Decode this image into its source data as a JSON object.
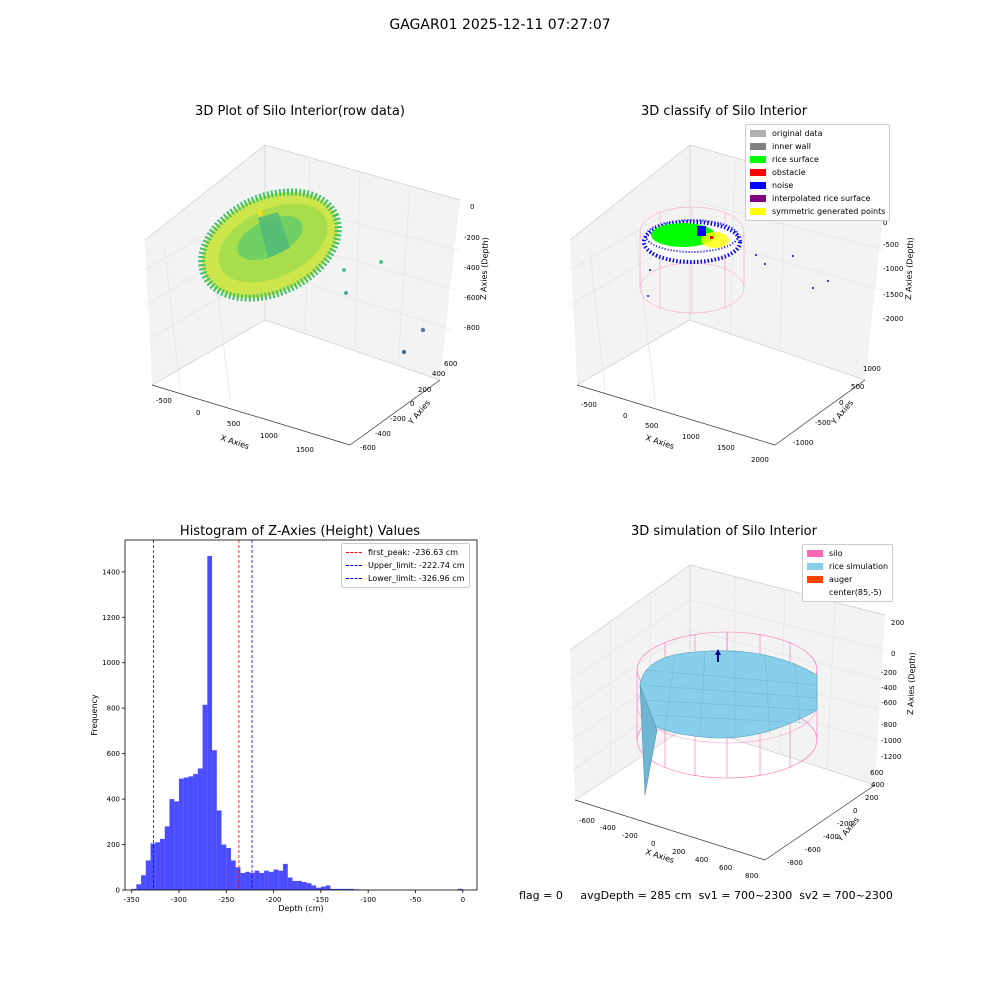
{
  "figure_title": "GAGAR01 2025-12-11 07:27:07",
  "panels": {
    "raw": {
      "title": "3D Plot of Silo Interior(row data)",
      "x_label": "X Axies",
      "y_label": "Y Axies",
      "z_label": "Z Axies (Depth)",
      "x_ticks": [
        "-500",
        "0",
        "500",
        "1000",
        "1500"
      ],
      "y_ticks": [
        "-600",
        "-400",
        "-200",
        "0",
        "200",
        "400",
        "600"
      ],
      "z_ticks": [
        "0",
        "-200",
        "-400",
        "-600",
        "-800"
      ]
    },
    "classify": {
      "title": "3D classify of Silo Interior",
      "x_label": "X Axies",
      "y_label": "Y Axies",
      "z_label": "Z Axies (Depth)",
      "x_ticks": [
        "-500",
        "0",
        "500",
        "1000",
        "1500",
        "2000"
      ],
      "y_ticks": [
        "-1000",
        "-500",
        "0",
        "500",
        "1000"
      ],
      "z_ticks": [
        "0",
        "-500",
        "-1000",
        "-1500",
        "-2000"
      ],
      "legend": [
        {
          "label": "original data",
          "color": "#b0b0b0"
        },
        {
          "label": "inner wall",
          "color": "#808080"
        },
        {
          "label": "rice surface",
          "color": "#00ff00"
        },
        {
          "label": "obstacle",
          "color": "#ff0000"
        },
        {
          "label": "noise",
          "color": "#0000ff"
        },
        {
          "label": "interpolated rice surface",
          "color": "#800080"
        },
        {
          "label": "symmetric generated points",
          "color": "#ffff00"
        }
      ]
    },
    "simulation": {
      "title": "3D simulation of Silo Interior",
      "x_label": "X Axies",
      "y_label": "Y Axies",
      "z_label": "Z Axies (Depth)",
      "x_ticks": [
        "-600",
        "-400",
        "-200",
        "0",
        "200",
        "400",
        "600",
        "800"
      ],
      "y_ticks": [
        "-800",
        "-600",
        "-400",
        "-200",
        "0",
        "200",
        "400",
        "600"
      ],
      "z_ticks": [
        "200",
        "0",
        "-200",
        "-400",
        "-600",
        "-800",
        "-1000",
        "-1200"
      ],
      "legend": [
        {
          "label": "silo",
          "color": "#ff69b4"
        },
        {
          "label": "rice simulation",
          "color": "#87ceeb"
        },
        {
          "label": "auger",
          "color": "#ff4500"
        },
        {
          "label": "center(85,-5)",
          "color": ""
        }
      ]
    }
  },
  "chart_data": {
    "type": "bar",
    "title": "Histogram of Z-Axies (Height) Values",
    "xlabel": "Depth (cm)",
    "ylabel": "Frequency",
    "xlim": [
      -357,
      15
    ],
    "ylim": [
      0,
      1540
    ],
    "x_ticks": [
      -350,
      -300,
      -250,
      -200,
      -150,
      -100,
      -50,
      0
    ],
    "y_ticks": [
      0,
      200,
      400,
      600,
      800,
      1000,
      1200,
      1400
    ],
    "bar_color": "#0000ff",
    "bin_edges": [
      -350,
      -345,
      -340,
      -335,
      -330,
      -325,
      -320,
      -315,
      -310,
      -305,
      -300,
      -295,
      -290,
      -285,
      -280,
      -275,
      -270,
      -265,
      -260,
      -255,
      -250,
      -245,
      -240,
      -235,
      -230,
      -225,
      -220,
      -215,
      -210,
      -205,
      -200,
      -195,
      -190,
      -185,
      -180,
      -175,
      -170,
      -165,
      -160,
      -155,
      -150,
      -145,
      -140,
      -135,
      -130,
      -125,
      -120,
      -115,
      -110,
      -105,
      -100,
      -95,
      -90,
      -85,
      -80,
      -75,
      -70,
      -65,
      -60,
      -55,
      -50,
      -45,
      -40,
      -35,
      -30,
      -25,
      -20,
      -15,
      -10,
      -5,
      0
    ],
    "counts": [
      5,
      25,
      65,
      130,
      205,
      210,
      225,
      280,
      400,
      390,
      490,
      495,
      500,
      510,
      535,
      815,
      1470,
      615,
      350,
      200,
      185,
      130,
      100,
      75,
      80,
      75,
      85,
      75,
      85,
      80,
      90,
      85,
      115,
      55,
      40,
      40,
      35,
      30,
      20,
      10,
      15,
      20,
      5,
      5,
      5,
      5,
      5,
      3,
      2,
      2,
      1,
      0,
      0,
      0,
      0,
      0,
      0,
      0,
      0,
      0,
      0,
      0,
      0,
      0,
      0,
      0,
      0,
      0,
      0,
      5
    ],
    "vlines": [
      {
        "label": "first_peak: -236.63 cm",
        "x": -236.63,
        "color": "#ff0000"
      },
      {
        "label": "Upper_limit: -222.74 cm",
        "x": -222.74,
        "color": "#0000ff"
      },
      {
        "label": "Lower_limit: -326.96 cm",
        "x": -326.96,
        "color": "#0000ff"
      }
    ],
    "legend_position": "top-right"
  },
  "status": {
    "flag": "flag = 0",
    "avg_depth": "avgDepth = 285 cm",
    "sv1": "sv1 = 700~2300",
    "sv2": "sv2 = 700~2300"
  }
}
